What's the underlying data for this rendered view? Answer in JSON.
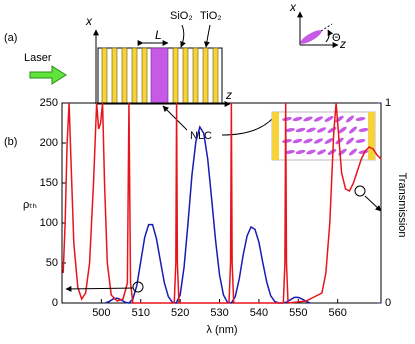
{
  "diagram": {
    "panel_a": "(a)",
    "panel_b": "(b)",
    "laser": "Laser",
    "x_axis": "x",
    "z_axis": "z",
    "period": "L",
    "sio2": "SiO₂",
    "tio2": "TiO₂",
    "nlc": "NLC",
    "inset_x": "x",
    "inset_z": "z",
    "theta": "Θ"
  },
  "chart_data": {
    "type": "line",
    "x_label": "λ (nm)",
    "y_label": "ρₜₕ",
    "y2_label": "Transmission",
    "xlim": [
      490,
      571
    ],
    "xticks": [
      500,
      510,
      520,
      530,
      540,
      550,
      560
    ],
    "ylim": [
      0,
      250
    ],
    "yticks": [
      0,
      50,
      100,
      150,
      200,
      250
    ],
    "y2lim": [
      0,
      1
    ],
    "y2ticks": [
      0,
      1
    ],
    "series": [
      {
        "color": "#1a1ab4",
        "axis": "y",
        "x": [
          501,
          502,
          503,
          504,
          505,
          506,
          507,
          508,
          509,
          510,
          511,
          512,
          513,
          514,
          515,
          516,
          517,
          518,
          519,
          520,
          521,
          522,
          523,
          524,
          525,
          526,
          527,
          528,
          529,
          530,
          531,
          532,
          533,
          534,
          535,
          536,
          537,
          538,
          539,
          540,
          541,
          542,
          543,
          544,
          545,
          546,
          547,
          548,
          549,
          550,
          551,
          552,
          553
        ],
        "values": [
          0,
          2,
          5,
          6,
          4,
          1,
          0,
          5,
          22,
          52,
          82,
          98,
          98,
          80,
          52,
          25,
          8,
          1,
          0,
          10,
          45,
          100,
          160,
          202,
          220,
          212,
          180,
          130,
          78,
          35,
          10,
          1,
          0,
          8,
          30,
          60,
          84,
          95,
          92,
          76,
          50,
          26,
          9,
          2,
          0,
          0,
          1,
          4,
          7,
          7,
          5,
          2,
          0
        ]
      },
      {
        "color": "#e8141c",
        "axis": "y2",
        "x": [
          490.3,
          490.8,
          491.3,
          491.8,
          492.3,
          493,
          494,
          495,
          496,
          497,
          498,
          498.8,
          499.3,
          499.8,
          500.3,
          500.8,
          501.5,
          502.5,
          504,
          505.5,
          506.6,
          507,
          507.4,
          508,
          518.5,
          518.9,
          519.1,
          519.3,
          519.7,
          532.4,
          532.8,
          533,
          533.2,
          533.6,
          546.2,
          546.6,
          546.8,
          547,
          547.4,
          552,
          554,
          556,
          557,
          558,
          559,
          559.6,
          560.2,
          561,
          562,
          563,
          564,
          565,
          566,
          567,
          568,
          569,
          570,
          571
        ],
        "values": [
          0.15,
          0.4,
          0.8,
          1,
          0.7,
          0.3,
          0.08,
          0.02,
          0.05,
          0.2,
          0.6,
          1,
          0.87,
          0.9,
          1,
          0.6,
          0.2,
          0.04,
          0.01,
          0.02,
          0.1,
          1,
          0.1,
          0,
          0,
          0.2,
          1,
          0.2,
          0,
          0,
          0.2,
          1,
          0.2,
          0,
          0,
          0.2,
          1,
          0.2,
          0,
          0.01,
          0.03,
          0.05,
          0.15,
          0.4,
          0.85,
          1,
          0.85,
          0.65,
          0.57,
          0.56,
          0.6,
          0.66,
          0.72,
          0.76,
          0.78,
          0.77,
          0.74,
          0.72
        ]
      }
    ]
  }
}
